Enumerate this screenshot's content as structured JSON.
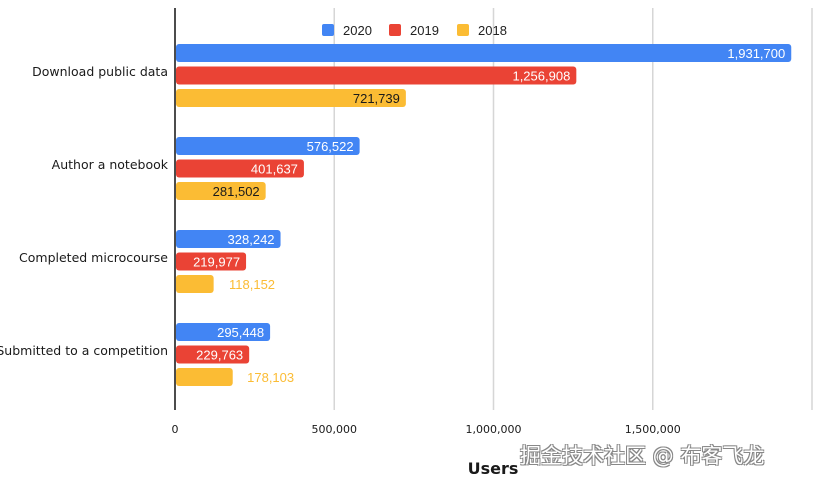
{
  "chart_data": {
    "type": "bar",
    "orientation": "horizontal",
    "title": "",
    "xlabel": "Users",
    "ylabel": "",
    "xlim": [
      0,
      2000000
    ],
    "x_ticks": [
      0,
      500000,
      1000000,
      1500000,
      2000000
    ],
    "x_tick_labels": [
      "0",
      "500,000",
      "1,000,000",
      "1,500,000",
      ""
    ],
    "grid": true,
    "legend_position": "top-center",
    "categories": [
      "Download public data",
      "Author a notebook",
      "Completed microcourse",
      "Submitted to a competition"
    ],
    "series": [
      {
        "name": "2020",
        "color": "#4285f4",
        "values": [
          1931700,
          576522,
          328242,
          295448
        ],
        "labels": [
          "1,931,700",
          "576,522",
          "328,242",
          "295,448"
        ]
      },
      {
        "name": "2019",
        "color": "#ea4335",
        "values": [
          1256908,
          401637,
          219977,
          229763
        ],
        "labels": [
          "1,256,908",
          "401,637",
          "219,977",
          "229,763"
        ]
      },
      {
        "name": "2018",
        "color": "#fbbc34",
        "values": [
          721739,
          281502,
          118152,
          178103
        ],
        "labels": [
          "721,739",
          "281,502",
          "118,152",
          "178,103"
        ]
      }
    ]
  },
  "watermark": "掘金技术社区 @ 布客飞龙"
}
